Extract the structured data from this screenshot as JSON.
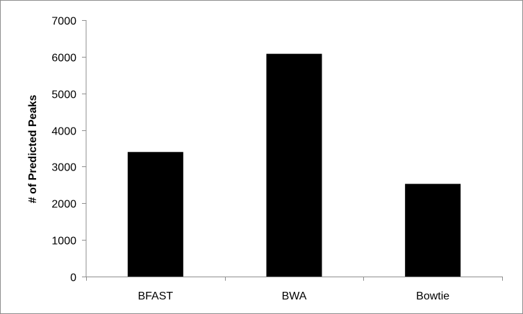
{
  "chart_data": {
    "type": "bar",
    "title": "",
    "xlabel": "",
    "ylabel": "# of Predicted Peaks",
    "categories": [
      "BFAST",
      "BWA",
      "Bowtie"
    ],
    "values": [
      3400,
      6080,
      2530
    ],
    "ylim": [
      0,
      7000
    ],
    "yticks": [
      0,
      1000,
      2000,
      3000,
      4000,
      5000,
      6000,
      7000
    ],
    "ytick_labels": [
      "0",
      "1000",
      "2000",
      "3000",
      "4000",
      "5000",
      "6000",
      "7000"
    ],
    "grid": false,
    "legend": "none",
    "bar_color": "#000000"
  }
}
